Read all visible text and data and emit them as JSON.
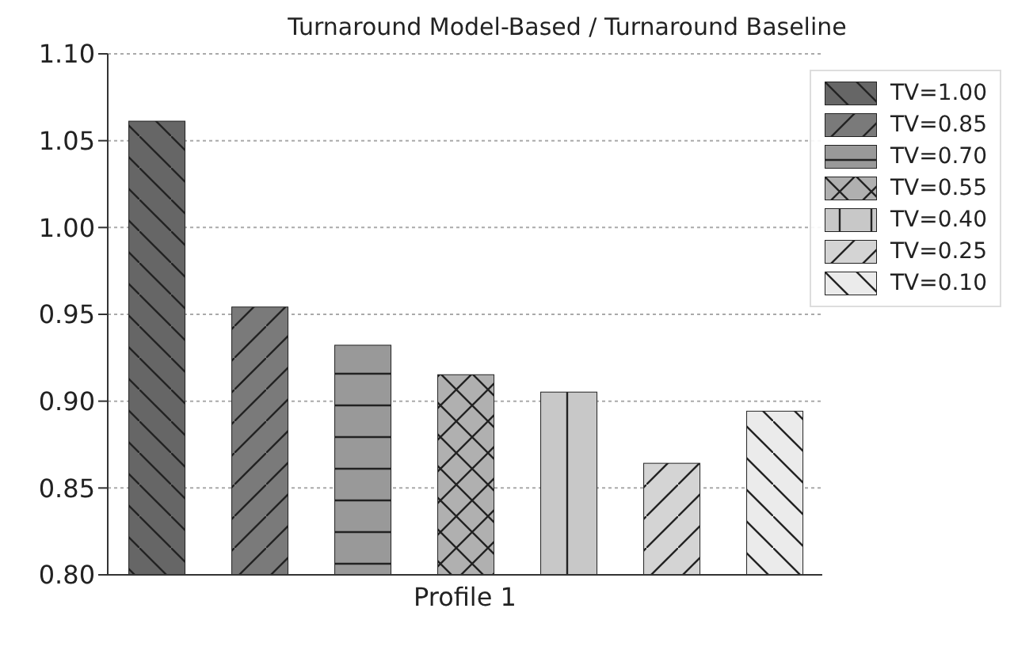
{
  "chart_data": {
    "type": "bar",
    "title": "Turnaround Model-Based / Turnaround Baseline",
    "categories": [
      "Profile 1"
    ],
    "series": [
      {
        "name": "TV=1.00",
        "color": "#666666",
        "values": [
          1.061
        ]
      },
      {
        "name": "TV=0.85",
        "color": "#7a7a7a",
        "values": [
          0.954
        ]
      },
      {
        "name": "TV=0.70",
        "color": "#999999",
        "values": [
          0.932
        ]
      },
      {
        "name": "TV=0.55",
        "color": "#b0b0b0",
        "values": [
          0.915
        ]
      },
      {
        "name": "TV=0.40",
        "color": "#c8c8c8",
        "values": [
          0.905
        ]
      },
      {
        "name": "TV=0.25",
        "color": "#d4d4d4",
        "values": [
          0.864
        ]
      },
      {
        "name": "TV=0.10",
        "color": "#ebebeb",
        "values": [
          0.894
        ]
      }
    ],
    "ylim": [
      0.8,
      1.1
    ],
    "yticks": [
      {
        "value": 0.8,
        "label": "0.80"
      },
      0.85,
      {
        "value": 0.9,
        "label": "0.90"
      },
      0.95,
      {
        "value": 1.0,
        "label": "1.00"
      },
      1.05,
      {
        "value": 1.1,
        "label": "1.10"
      }
    ],
    "grid": "y",
    "legend": "top right"
  }
}
